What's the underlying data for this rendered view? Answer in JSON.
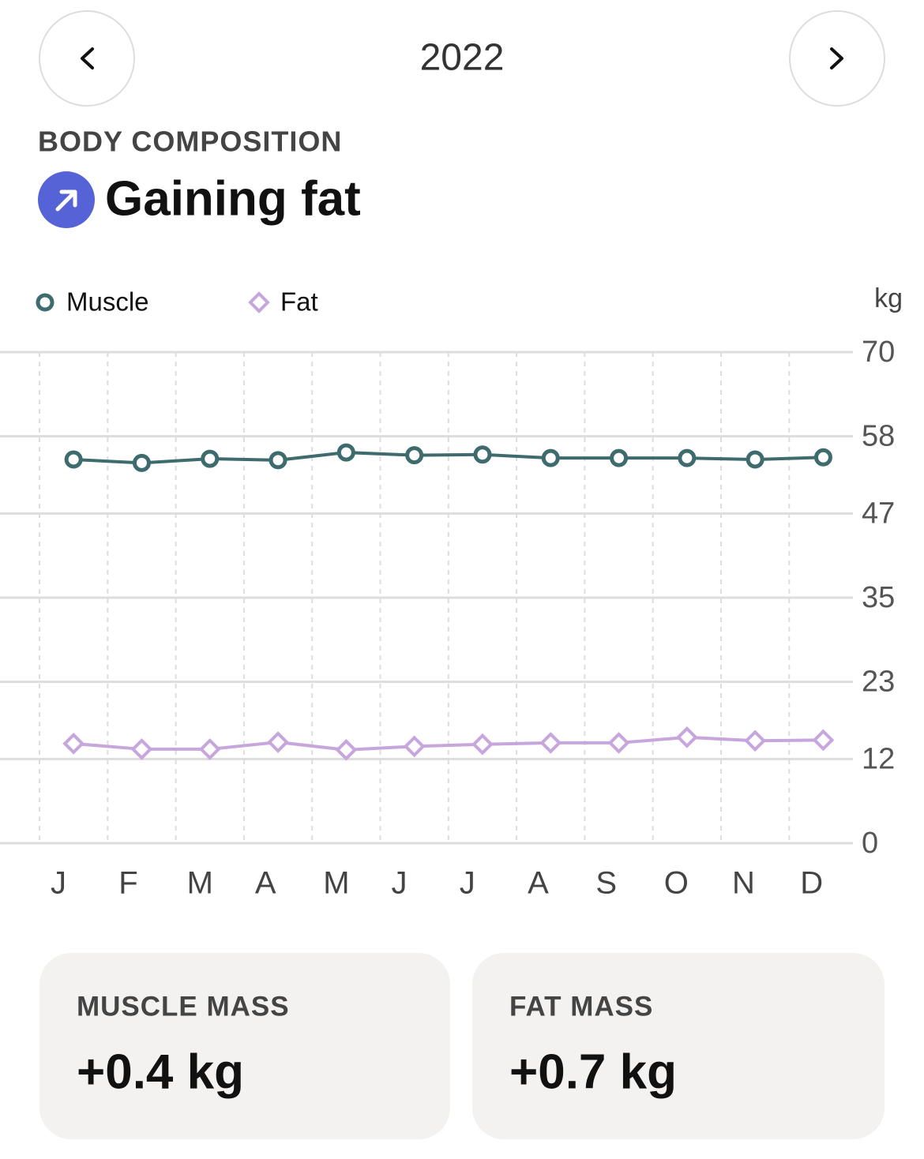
{
  "header": {
    "year": "2022"
  },
  "section": {
    "label": "BODY COMPOSITION",
    "status": "Gaining fat"
  },
  "chart_data": {
    "type": "line",
    "unit_label": "kg",
    "categories": [
      "J",
      "F",
      "M",
      "A",
      "M",
      "J",
      "J",
      "A",
      "S",
      "O",
      "N",
      "D"
    ],
    "series": [
      {
        "name": "Muscle",
        "color": "#3d6b6e",
        "marker": "circle",
        "values": [
          54.7,
          54.2,
          54.8,
          54.6,
          55.7,
          55.3,
          55.4,
          54.9,
          54.9,
          54.9,
          54.7,
          55.0
        ]
      },
      {
        "name": "Fat",
        "color": "#c6a6dc",
        "marker": "diamond",
        "values": [
          14.2,
          13.4,
          13.4,
          14.4,
          13.3,
          13.8,
          14.1,
          14.3,
          14.3,
          15.1,
          14.6,
          14.7
        ]
      }
    ],
    "ylim": [
      0,
      70
    ],
    "yticks": [
      0,
      12,
      23,
      35,
      47,
      58,
      70
    ],
    "grid": true
  },
  "cards": [
    {
      "label": "MUSCLE MASS",
      "value": "+0.4 kg"
    },
    {
      "label": "FAT MASS",
      "value": "+0.7 kg"
    }
  ]
}
